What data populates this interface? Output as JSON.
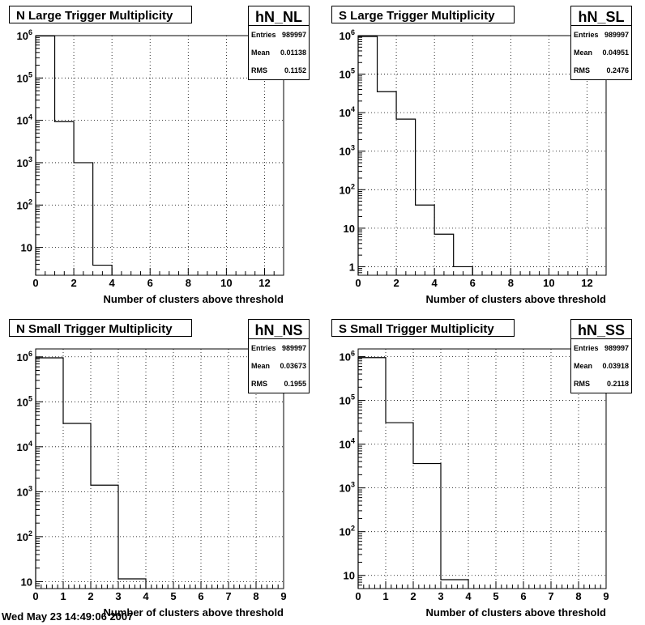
{
  "footer": "Wed May 23 14:49:06 2007",
  "chart_data": [
    {
      "type": "bar",
      "title": "N Large Trigger Multiplicity",
      "name": "hN_NL",
      "stats": [
        {
          "label": "Entries",
          "value": "989997"
        },
        {
          "label": "Mean",
          "value": "0.01138"
        },
        {
          "label": "RMS",
          "value": "0.1152"
        }
      ],
      "xlabel": "Number of clusters above threshold",
      "xlim": [
        0,
        13
      ],
      "xticks": [
        0,
        2,
        4,
        6,
        8,
        10,
        12
      ],
      "ylog": true,
      "ylim": [
        2.2,
        1000000
      ],
      "yticks": [
        {
          "v": 10,
          "l": "10"
        },
        {
          "v": 100,
          "l": "10^2"
        },
        {
          "v": 1000,
          "l": "10^3"
        },
        {
          "v": 10000,
          "l": "10^4"
        },
        {
          "v": 100000,
          "l": "10^5"
        },
        {
          "v": 1000000,
          "l": "10^6"
        }
      ],
      "bins": [
        {
          "x0": 0,
          "x1": 1,
          "y": 980000
        },
        {
          "x0": 1,
          "x1": 2,
          "y": 9300
        },
        {
          "x0": 2,
          "x1": 3,
          "y": 1000
        },
        {
          "x0": 3,
          "x1": 4,
          "y": 3.8
        }
      ],
      "grid": true
    },
    {
      "type": "bar",
      "title": "S Large Trigger Multiplicity",
      "name": "hN_SL",
      "stats": [
        {
          "label": "Entries",
          "value": "989997"
        },
        {
          "label": "Mean",
          "value": "0.04951"
        },
        {
          "label": "RMS",
          "value": "0.2476"
        }
      ],
      "xlabel": "Number of clusters above threshold",
      "xlim": [
        0,
        13
      ],
      "xticks": [
        0,
        2,
        4,
        6,
        8,
        10,
        12
      ],
      "ylog": true,
      "ylim": [
        0.6,
        1000000
      ],
      "yticks": [
        {
          "v": 1,
          "l": "1"
        },
        {
          "v": 10,
          "l": "10"
        },
        {
          "v": 100,
          "l": "10^2"
        },
        {
          "v": 1000,
          "l": "10^3"
        },
        {
          "v": 10000,
          "l": "10^4"
        },
        {
          "v": 100000,
          "l": "10^5"
        },
        {
          "v": 1000000,
          "l": "10^6"
        }
      ],
      "bins": [
        {
          "x0": 0,
          "x1": 1,
          "y": 950000
        },
        {
          "x0": 1,
          "x1": 2,
          "y": 35000
        },
        {
          "x0": 2,
          "x1": 3,
          "y": 6800
        },
        {
          "x0": 3,
          "x1": 4,
          "y": 40
        },
        {
          "x0": 4,
          "x1": 5,
          "y": 7
        },
        {
          "x0": 5,
          "x1": 6,
          "y": 1
        }
      ],
      "grid": true
    },
    {
      "type": "bar",
      "title": "N Small Trigger Multiplicity",
      "name": "hN_NS",
      "stats": [
        {
          "label": "Entries",
          "value": "989997"
        },
        {
          "label": "Mean",
          "value": "0.03673"
        },
        {
          "label": "RMS",
          "value": "0.1955"
        }
      ],
      "xlabel": "Number of clusters above threshold",
      "xlim": [
        0,
        9
      ],
      "xticks": [
        0,
        1,
        2,
        3,
        4,
        5,
        6,
        7,
        8,
        9
      ],
      "ylog": true,
      "ylim": [
        7,
        1500000
      ],
      "yticks": [
        {
          "v": 10,
          "l": "10"
        },
        {
          "v": 100,
          "l": "10^2"
        },
        {
          "v": 1000,
          "l": "10^3"
        },
        {
          "v": 10000,
          "l": "10^4"
        },
        {
          "v": 100000,
          "l": "10^5"
        },
        {
          "v": 1000000,
          "l": "10^6"
        }
      ],
      "bins": [
        {
          "x0": 0,
          "x1": 1,
          "y": 950000
        },
        {
          "x0": 1,
          "x1": 2,
          "y": 33000
        },
        {
          "x0": 2,
          "x1": 3,
          "y": 1400
        },
        {
          "x0": 3,
          "x1": 4,
          "y": 11.5
        }
      ],
      "grid": true
    },
    {
      "type": "bar",
      "title": "S Small Trigger Multiplicity",
      "name": "hN_SS",
      "stats": [
        {
          "label": "Entries",
          "value": "989997"
        },
        {
          "label": "Mean",
          "value": "0.03918"
        },
        {
          "label": "RMS",
          "value": "0.2118"
        }
      ],
      "xlabel": "Number of clusters above threshold",
      "xlim": [
        0,
        9
      ],
      "xticks": [
        0,
        1,
        2,
        3,
        4,
        5,
        6,
        7,
        8,
        9
      ],
      "ylog": true,
      "ylim": [
        5,
        1500000
      ],
      "yticks": [
        {
          "v": 10,
          "l": "10"
        },
        {
          "v": 100,
          "l": "10^2"
        },
        {
          "v": 1000,
          "l": "10^3"
        },
        {
          "v": 10000,
          "l": "10^4"
        },
        {
          "v": 100000,
          "l": "10^5"
        },
        {
          "v": 1000000,
          "l": "10^6"
        }
      ],
      "bins": [
        {
          "x0": 0,
          "x1": 1,
          "y": 950000
        },
        {
          "x0": 1,
          "x1": 2,
          "y": 31000
        },
        {
          "x0": 2,
          "x1": 3,
          "y": 3600
        },
        {
          "x0": 3,
          "x1": 4,
          "y": 8
        }
      ],
      "grid": true
    }
  ]
}
